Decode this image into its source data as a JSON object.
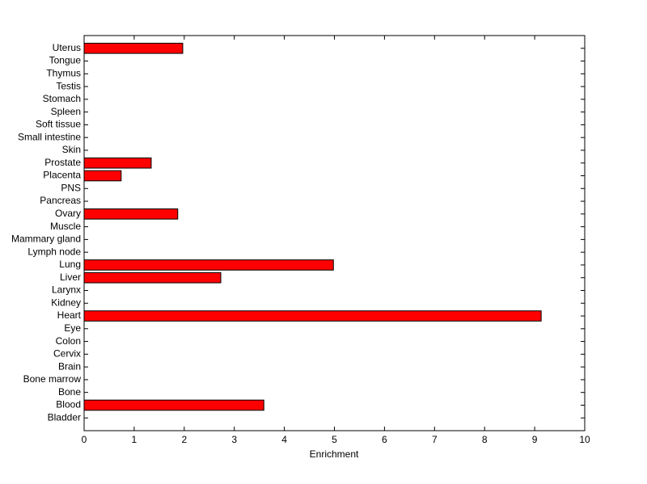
{
  "chart_data": {
    "type": "barh",
    "xlabel": "Enrichment",
    "categories": [
      "Bladder",
      "Blood",
      "Bone",
      "Bone marrow",
      "Brain",
      "Cervix",
      "Colon",
      "Eye",
      "Heart",
      "Kidney",
      "Larynx",
      "Liver",
      "Lung",
      "Lymph node",
      "Mammary gland",
      "Muscle",
      "Ovary",
      "Pancreas",
      "PNS",
      "Placenta",
      "Prostate",
      "Skin",
      "Small intestine",
      "Soft tissue",
      "Spleen",
      "Stomach",
      "Testis",
      "Thymus",
      "Tongue",
      "Uterus"
    ],
    "values": [
      0,
      3.59,
      0,
      0,
      0,
      0,
      0,
      0,
      9.13,
      0,
      0,
      2.73,
      4.98,
      0,
      0,
      0,
      1.87,
      0,
      0,
      0.74,
      1.34,
      0,
      0,
      0,
      0,
      0,
      0,
      0,
      0,
      1.97
    ],
    "color": "#ff0000",
    "xlim": [
      0,
      10
    ],
    "xticks": [
      0,
      1,
      2,
      3,
      4,
      5,
      6,
      7,
      8,
      9,
      10
    ],
    "grid": false
  }
}
